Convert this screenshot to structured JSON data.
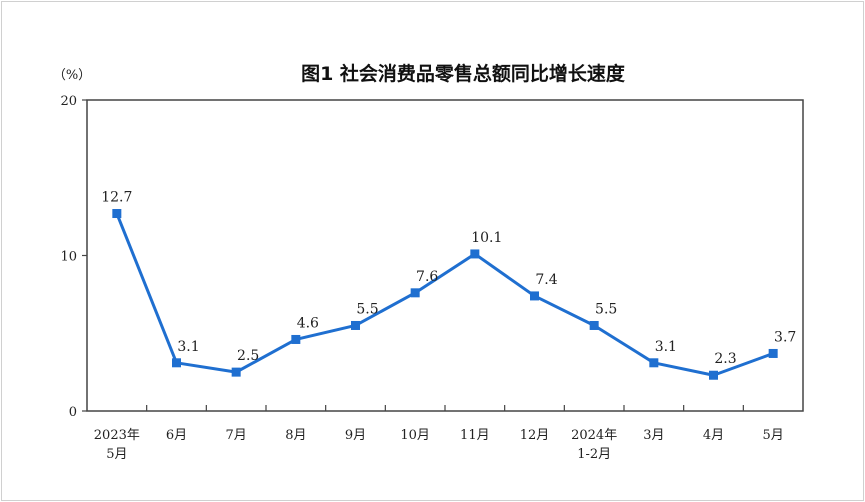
{
  "chart_data": {
    "type": "line",
    "title": "图1  社会消费品零售总额同比增长速度",
    "ylabel": "（%）",
    "xlabel": "",
    "ylim": [
      0,
      20
    ],
    "yticks": [
      "0",
      "10",
      "20"
    ],
    "grid": false,
    "categories": [
      [
        "2023年",
        "5月"
      ],
      [
        "6月"
      ],
      [
        "7月"
      ],
      [
        "8月"
      ],
      [
        "9月"
      ],
      [
        "10月"
      ],
      [
        "11月"
      ],
      [
        "12月"
      ],
      [
        "2024年",
        "1-2月"
      ],
      [
        "3月"
      ],
      [
        "4月"
      ],
      [
        "5月"
      ]
    ],
    "values": [
      12.7,
      3.1,
      2.5,
      4.6,
      5.5,
      7.6,
      10.1,
      7.4,
      5.5,
      3.1,
      2.3,
      3.7
    ],
    "data_labels": [
      "12.7",
      "3.1",
      "2.5",
      "4.6",
      "5.5",
      "7.6",
      "10.1",
      "7.4",
      "5.5",
      "3.1",
      "2.3",
      "3.7"
    ],
    "line_color": "#1f6fd0",
    "marker": "square"
  }
}
